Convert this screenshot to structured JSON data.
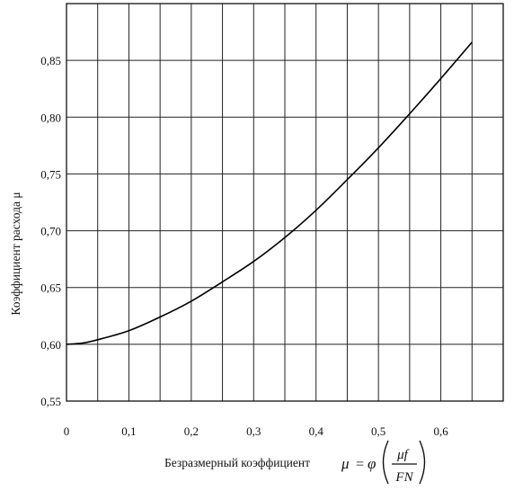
{
  "chart_data": {
    "type": "line",
    "xlabel": "Безразмерный коэффициент",
    "xlabel_formula": {
      "lhs": "μ",
      "eq": "=",
      "func": "φ",
      "numerator": "μf",
      "denominator": "FN"
    },
    "ylabel": "Коэффициент расхода  μ",
    "x_ticks": [
      "0",
      "0,1",
      "0,2",
      "0,3",
      "0,4",
      "0,5",
      "0,6"
    ],
    "y_ticks": [
      "0,55",
      "0,60",
      "0,65",
      "0,70",
      "0,75",
      "0,80",
      "0,85"
    ],
    "xlim": [
      0,
      0.7
    ],
    "ylim": [
      0.55,
      0.9
    ],
    "grid": true,
    "grid_step_x": 0.05,
    "grid_step_y": 0.05,
    "series": [
      {
        "x": [
          0,
          0.025,
          0.05,
          0.1,
          0.15,
          0.2,
          0.25,
          0.3,
          0.35,
          0.4,
          0.45,
          0.5,
          0.55,
          0.6,
          0.65
        ],
        "y": [
          0.6,
          0.601,
          0.604,
          0.612,
          0.624,
          0.638,
          0.655,
          0.673,
          0.694,
          0.718,
          0.745,
          0.773,
          0.803,
          0.834,
          0.866
        ]
      }
    ]
  }
}
